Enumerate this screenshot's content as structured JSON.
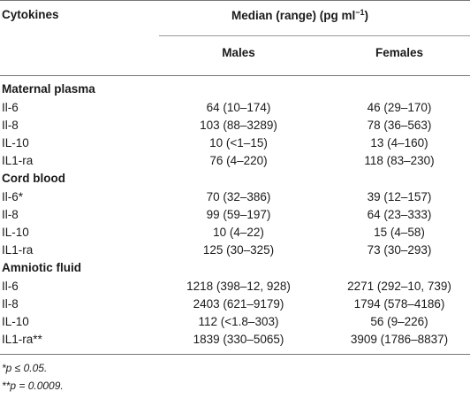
{
  "table": {
    "col_cytokines": "Cytokines",
    "col_median_main": "Median (range) (pg ml",
    "col_median_sup": "−1",
    "col_median_close": ")",
    "col_males": "Males",
    "col_females": "Females",
    "sections": [
      {
        "title": "Maternal plasma",
        "rows": [
          {
            "name": "Il-6",
            "males": "64 (10–174)",
            "females": "46 (29–170)"
          },
          {
            "name": "Il-8",
            "males": "103 (88–3289)",
            "females": "78 (36–563)"
          },
          {
            "name": "IL-10",
            "males": "10 (<1–15)",
            "females": "13 (4–160)"
          },
          {
            "name": "IL1-ra",
            "males": "76 (4–220)",
            "females": "118 (83–230)"
          }
        ]
      },
      {
        "title": "Cord blood",
        "rows": [
          {
            "name": "Il-6*",
            "males": "70 (32–386)",
            "females": "39 (12–157)"
          },
          {
            "name": "Il-8",
            "males": "99 (59–197)",
            "females": "64 (23–333)"
          },
          {
            "name": "IL-10",
            "males": "10 (4–22)",
            "females": "15 (4–58)"
          },
          {
            "name": "IL1-ra",
            "males": "125 (30–325)",
            "females": "73 (30–293)"
          }
        ]
      },
      {
        "title": "Amniotic fluid",
        "rows": [
          {
            "name": "Il-6",
            "males": "1218 (398–12, 928)",
            "females": "2271 (292–10, 739)"
          },
          {
            "name": "Il-8",
            "males": "2403 (621–9179)",
            "females": "1794 (578–4186)"
          },
          {
            "name": "IL-10",
            "males": "112 (<1.8–303)",
            "females": "56 (9–226)"
          },
          {
            "name": "IL1-ra**",
            "males": "1839 (330–5065)",
            "females": "3909 (1786–8837)"
          }
        ]
      }
    ],
    "footnotes": [
      "*p ≤ 0.05.",
      "**p = 0.0009."
    ]
  }
}
